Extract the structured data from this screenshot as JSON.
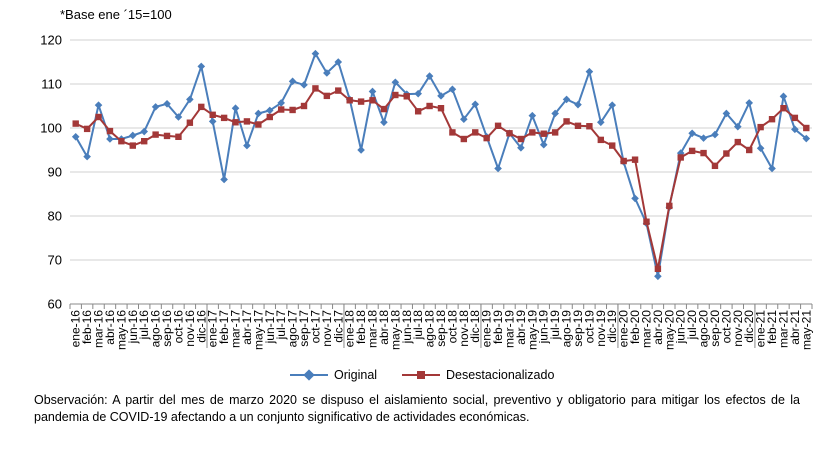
{
  "chart_data": {
    "type": "line",
    "ylabel": "*Base ene ´15=100",
    "ylim": [
      60,
      120
    ],
    "yticks": [
      60,
      70,
      80,
      90,
      100,
      110,
      120
    ],
    "grid": "horizontal",
    "legend_position": "bottom",
    "categories": [
      "ene-16",
      "feb-16",
      "mar-16",
      "abr-16",
      "may-16",
      "jun-16",
      "jul-16",
      "ago-16",
      "sep-16",
      "oct-16",
      "nov-16",
      "dic-16",
      "ene-17",
      "feb-17",
      "mar-17",
      "abr-17",
      "may-17",
      "jun-17",
      "jul-17",
      "ago-17",
      "sep-17",
      "oct-17",
      "nov-17",
      "dic-17",
      "ene-18",
      "feb-18",
      "mar-18",
      "abr-18",
      "may-18",
      "jun-18",
      "jul-18",
      "ago-18",
      "sep-18",
      "oct-18",
      "nov-18",
      "dic-18",
      "ene-19",
      "feb-19",
      "mar-19",
      "abr-19",
      "may-19",
      "jun-19",
      "jul-19",
      "ago-19",
      "sep-19",
      "oct-19",
      "nov-19",
      "dic-19",
      "ene-20",
      "feb-20",
      "mar-20",
      "abr-20",
      "may-20",
      "jun-20",
      "jul-20",
      "ago-20",
      "sep-20",
      "oct-20",
      "nov-20",
      "dic-20",
      "ene-21",
      "feb-21",
      "mar-21",
      "abr-21",
      "may-21"
    ],
    "series": [
      {
        "name": "Original",
        "color": "#4a7ebb",
        "marker": "diamond",
        "values": [
          98.0,
          93.5,
          105.2,
          97.5,
          97.5,
          98.3,
          99.2,
          104.8,
          105.5,
          102.5,
          106.5,
          114.0,
          101.5,
          88.3,
          104.5,
          96.0,
          103.3,
          104.0,
          105.7,
          110.6,
          109.8,
          116.9,
          112.5,
          115.0,
          106.5,
          95.0,
          108.3,
          101.3,
          110.4,
          107.7,
          107.8,
          111.8,
          107.3,
          108.8,
          102.0,
          105.4,
          98.0,
          90.8,
          98.8,
          95.5,
          102.8,
          96.2,
          103.3,
          106.5,
          105.3,
          112.8,
          101.3,
          105.2,
          92.3,
          84.0,
          78.3,
          66.3,
          82.0,
          94.3,
          98.8,
          97.7,
          98.5,
          103.3,
          100.3,
          105.7,
          95.4,
          90.8,
          107.2,
          99.7,
          97.6
        ]
      },
      {
        "name": "Desestacionalizado",
        "color": "#a33838",
        "marker": "square",
        "values": [
          101.0,
          99.8,
          102.5,
          99.3,
          97.0,
          96.0,
          97.0,
          98.5,
          98.2,
          98.0,
          101.2,
          104.8,
          103.0,
          102.3,
          101.3,
          101.5,
          100.8,
          102.5,
          104.2,
          104.1,
          105.0,
          109.0,
          107.3,
          108.5,
          106.3,
          106.0,
          106.3,
          104.3,
          107.5,
          107.2,
          103.8,
          105.0,
          104.5,
          99.0,
          97.5,
          99.0,
          97.7,
          100.5,
          98.8,
          97.5,
          99.0,
          98.7,
          99.0,
          101.5,
          100.5,
          100.4,
          97.3,
          96.0,
          92.5,
          92.8,
          78.7,
          68.0,
          82.3,
          93.3,
          94.8,
          94.3,
          91.4,
          94.2,
          96.8,
          95.0,
          100.2,
          102.0,
          104.5,
          102.3,
          100.0
        ]
      }
    ]
  },
  "note": "Observación: A partir del mes de marzo 2020 se dispuso el aislamiento social, preventivo y obligatorio para mitigar los efectos de la pandemia de COVID-19 afectando a un conjunto significativo de actividades económicas."
}
